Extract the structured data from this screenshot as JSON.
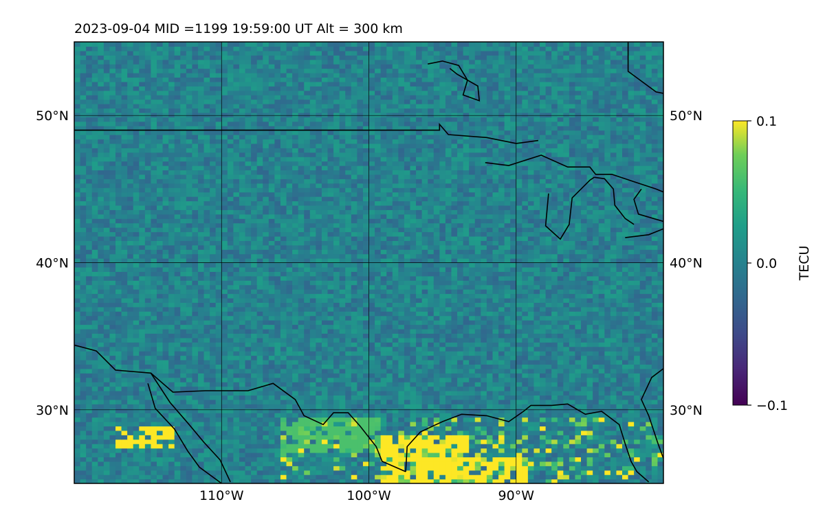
{
  "chart_data": {
    "type": "heatmap",
    "title": "2023-09-04  MID =1199    19:59:00  UT  Alt = 300 km",
    "lon_range": [
      -120,
      -80
    ],
    "lat_range": [
      25,
      55
    ],
    "x_ticks": [
      -110,
      -100,
      -90
    ],
    "x_tick_labels": [
      "110°W",
      "100°W",
      "90°W"
    ],
    "y_ticks": [
      30,
      40,
      50
    ],
    "y_tick_labels": [
      "30°N",
      "40°N",
      "50°N"
    ],
    "gridlines": true,
    "colormap": "viridis",
    "colorbar": {
      "label": "TECU",
      "vmin": -0.1,
      "vmax": 0.1,
      "ticks": [
        0.1,
        0.0,
        -0.1
      ],
      "tick_labels": [
        "0.1",
        "0.0",
        "−0.1"
      ]
    },
    "background_value_tecu": 0.0,
    "saturated_regions": [
      {
        "lon": [
          -117,
          -113
        ],
        "lat": [
          27.3,
          29.0
        ],
        "value": 0.1
      },
      {
        "lon": [
          -99,
          -93
        ],
        "lat": [
          25,
          28.2
        ],
        "value": 0.1
      },
      {
        "lon": [
          -94,
          -89
        ],
        "lat": [
          25,
          26.8
        ],
        "value": 0.1
      },
      {
        "lon": [
          -106,
          -99
        ],
        "lat": [
          27,
          29.5
        ],
        "value": 0.06
      }
    ],
    "coastlines": [
      [
        [
          -120,
          34.4
        ],
        [
          -118.5,
          34.0
        ],
        [
          -117.2,
          32.7
        ],
        [
          -114.8,
          32.5
        ],
        [
          -113.3,
          31.2
        ],
        [
          -111.1,
          31.3
        ],
        [
          -108.2,
          31.3
        ],
        [
          -106.5,
          31.8
        ],
        [
          -105,
          30.7
        ],
        [
          -104.4,
          29.6
        ],
        [
          -103.1,
          29
        ],
        [
          -102.4,
          29.8
        ],
        [
          -101.4,
          29.8
        ],
        [
          -100.6,
          28.9
        ],
        [
          -99.5,
          27.5
        ],
        [
          -99.1,
          26.5
        ],
        [
          -97.5,
          25.8
        ]
      ],
      [
        [
          -114.8,
          32.5
        ],
        [
          -113.5,
          30.5
        ],
        [
          -112.2,
          29.0
        ],
        [
          -111.2,
          27.8
        ],
        [
          -110.1,
          26.6
        ],
        [
          -109.4,
          25.1
        ]
      ],
      [
        [
          -115.0,
          31.8
        ],
        [
          -114.5,
          30.1
        ],
        [
          -113.2,
          28.7
        ],
        [
          -112.3,
          27.2
        ],
        [
          -111.5,
          26.1
        ],
        [
          -110.0,
          25.0
        ]
      ],
      [
        [
          -97.5,
          25.8
        ],
        [
          -97.4,
          27.5
        ],
        [
          -96.5,
          28.5
        ],
        [
          -95.0,
          29.2
        ],
        [
          -93.7,
          29.7
        ],
        [
          -92.0,
          29.6
        ],
        [
          -90.5,
          29.2
        ],
        [
          -89.5,
          29.9
        ],
        [
          -89.0,
          30.3
        ],
        [
          -87.6,
          30.3
        ],
        [
          -86.5,
          30.4
        ],
        [
          -85.3,
          29.7
        ],
        [
          -84.2,
          29.9
        ],
        [
          -83.0,
          29.0
        ],
        [
          -82.6,
          27.7
        ],
        [
          -82.2,
          26.5
        ],
        [
          -81.8,
          25.8
        ],
        [
          -81.0,
          25.1
        ]
      ],
      [
        [
          -80.0,
          26.7
        ],
        [
          -80.4,
          27.8
        ],
        [
          -81.0,
          29.6
        ],
        [
          -81.5,
          30.7
        ],
        [
          -80.8,
          32.2
        ],
        [
          -80,
          32.8
        ]
      ],
      [
        [
          -120,
          49.0
        ],
        [
          -95.2,
          49.0
        ],
        [
          -95.2,
          49.4
        ],
        [
          -94.6,
          48.7
        ],
        [
          -92.0,
          48.5
        ],
        [
          -90.0,
          48.1
        ],
        [
          -88.5,
          48.3
        ]
      ],
      [
        [
          -92.1,
          46.8
        ],
        [
          -90.5,
          46.6
        ],
        [
          -88.3,
          47.3
        ],
        [
          -86.5,
          46.5
        ],
        [
          -85.0,
          46.5
        ],
        [
          -84.6,
          46.0
        ],
        [
          -83.5,
          46.0
        ],
        [
          -82.0,
          45.5
        ],
        [
          -80.5,
          45.0
        ],
        [
          -80,
          44.8
        ]
      ],
      [
        [
          -87.8,
          44.7
        ],
        [
          -88.0,
          42.5
        ],
        [
          -87.0,
          41.6
        ],
        [
          -86.4,
          42.6
        ],
        [
          -86.2,
          44.4
        ],
        [
          -85.0,
          45.6
        ],
        [
          -84.7,
          45.8
        ]
      ],
      [
        [
          -84.7,
          45.8
        ],
        [
          -84.0,
          45.7
        ],
        [
          -83.4,
          45.0
        ],
        [
          -83.3,
          43.9
        ],
        [
          -82.6,
          43.0
        ],
        [
          -82.0,
          42.6
        ]
      ],
      [
        [
          -81.5,
          45.0
        ],
        [
          -82.0,
          44.3
        ],
        [
          -81.7,
          43.3
        ],
        [
          -80,
          42.8
        ]
      ],
      [
        [
          -82.6,
          41.7
        ],
        [
          -81.0,
          41.9
        ],
        [
          -80,
          42.3
        ]
      ],
      [
        [
          -96.0,
          53.5
        ],
        [
          -95.0,
          53.7
        ],
        [
          -93.9,
          53.4
        ],
        [
          -93.3,
          52.4
        ],
        [
          -93.6,
          51.4
        ],
        [
          -92.5,
          51.0
        ],
        [
          -92.6,
          52.0
        ],
        [
          -94.0,
          52.8
        ],
        [
          -94.5,
          53.2
        ]
      ],
      [
        [
          -82.4,
          55.0
        ],
        [
          -82.4,
          53.0
        ],
        [
          -80.5,
          51.6
        ],
        [
          -80,
          51.5
        ]
      ]
    ]
  }
}
